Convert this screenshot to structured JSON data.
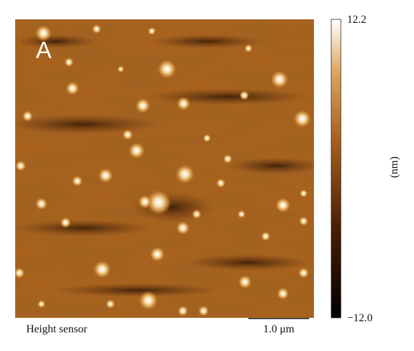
{
  "image": {
    "panel_label": "A",
    "caption": "Height sensor"
  },
  "scale_bar": {
    "label": "1.0 μm"
  },
  "colorbar": {
    "max_label": "12.2",
    "min_label": "−12.0",
    "unit": "(nm)"
  }
}
